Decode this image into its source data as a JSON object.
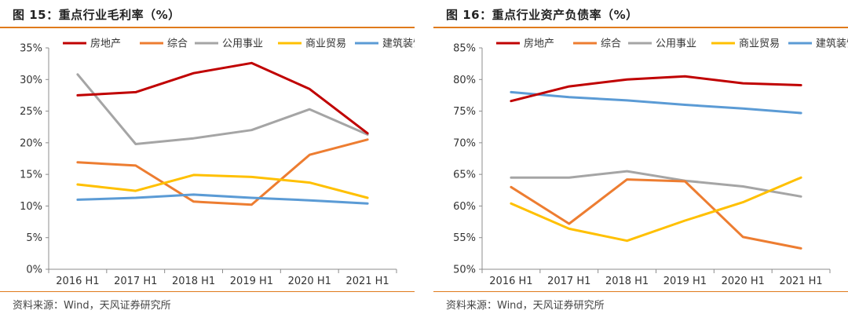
{
  "panels": [
    {
      "title": "图 15：重点行业毛利率（%）",
      "source": "资料来源：Wind，天风证券研究所"
    },
    {
      "title": "图 16：重点行业资产负债率（%）",
      "source": "资料来源：Wind，天风证券研究所"
    }
  ],
  "chart_data": [
    {
      "type": "line",
      "title": "",
      "xlabel": "",
      "ylabel": "",
      "categories": [
        "2016 H1",
        "2017 H1",
        "2018 H1",
        "2019 H1",
        "2020 H1",
        "2021 H1"
      ],
      "ylim": [
        0,
        35
      ],
      "ystep": 5,
      "yformat": "percent",
      "grid": false,
      "legend_position": "top",
      "series": [
        {
          "name": "房地产",
          "color": "#c00000",
          "values": [
            27.5,
            28.0,
            31.0,
            32.6,
            28.5,
            21.5
          ]
        },
        {
          "name": "综合",
          "color": "#ed7d31",
          "values": [
            16.9,
            16.4,
            10.7,
            10.2,
            18.1,
            20.5
          ]
        },
        {
          "name": "公用事业",
          "color": "#a5a5a5",
          "values": [
            30.8,
            19.8,
            20.7,
            22.0,
            25.3,
            21.3
          ]
        },
        {
          "name": "商业贸易",
          "color": "#ffc000",
          "values": [
            13.4,
            12.4,
            14.9,
            14.6,
            13.7,
            11.3
          ]
        },
        {
          "name": "建筑装饰",
          "color": "#5b9bd5",
          "values": [
            11.0,
            11.3,
            11.8,
            11.3,
            10.9,
            10.4
          ]
        }
      ]
    },
    {
      "type": "line",
      "title": "",
      "xlabel": "",
      "ylabel": "",
      "categories": [
        "2016 H1",
        "2017 H1",
        "2018 H1",
        "2019 H1",
        "2020 H1",
        "2021 H1"
      ],
      "ylim": [
        50,
        85
      ],
      "ystep": 5,
      "yformat": "percent",
      "grid": false,
      "legend_position": "top",
      "series": [
        {
          "name": "房地产",
          "color": "#c00000",
          "values": [
            76.6,
            78.9,
            80.0,
            80.5,
            79.4,
            79.1
          ]
        },
        {
          "name": "综合",
          "color": "#ed7d31",
          "values": [
            63.0,
            57.2,
            64.2,
            63.9,
            55.1,
            53.3
          ]
        },
        {
          "name": "公用事业",
          "color": "#a5a5a5",
          "values": [
            64.5,
            64.5,
            65.5,
            64.0,
            63.1,
            61.5
          ]
        },
        {
          "name": "商业贸易",
          "color": "#ffc000",
          "values": [
            60.4,
            56.4,
            54.5,
            57.7,
            60.6,
            64.5
          ]
        },
        {
          "name": "建筑装饰",
          "color": "#5b9bd5",
          "values": [
            78.0,
            77.2,
            76.7,
            76.0,
            75.4,
            74.7
          ]
        }
      ]
    }
  ]
}
